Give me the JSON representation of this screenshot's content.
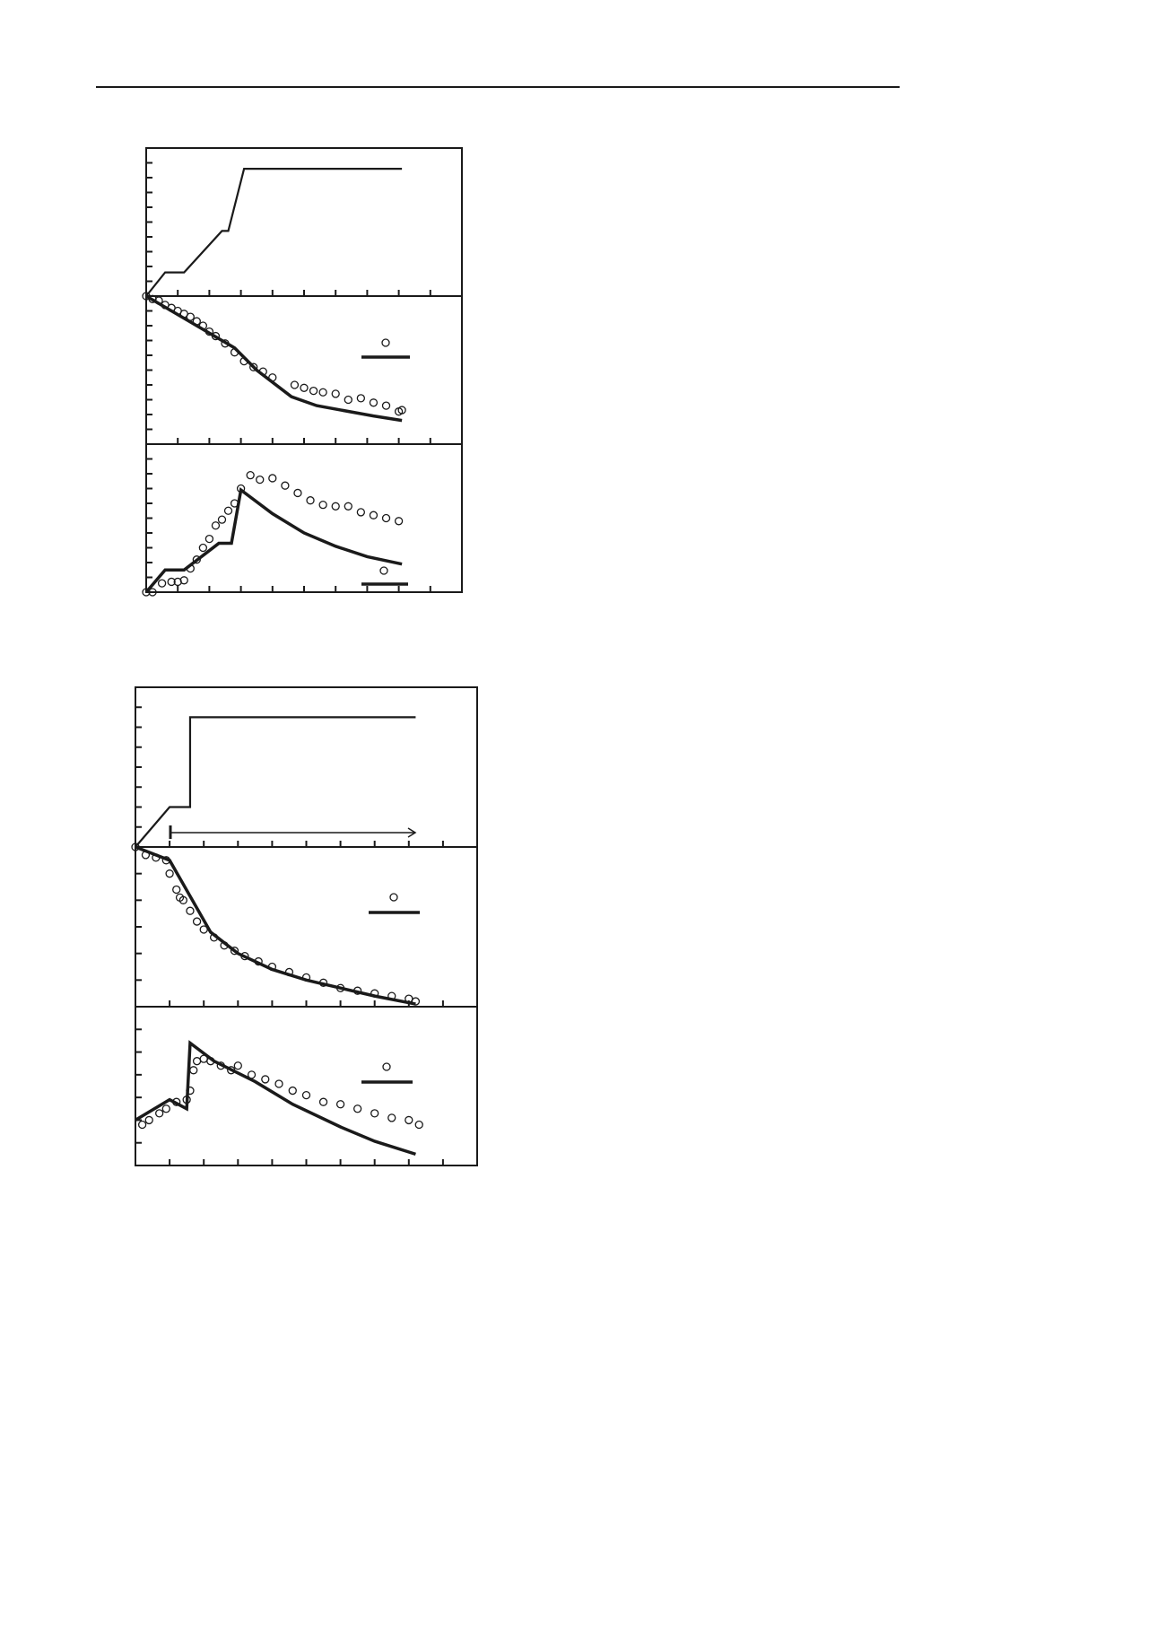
{
  "chart_data": [
    {
      "type": "line",
      "xlim": [
        0,
        10
      ],
      "xticks": [
        0,
        1,
        2,
        3,
        4,
        5,
        6,
        7,
        8,
        9,
        10
      ],
      "ylim": [
        0,
        10
      ],
      "yticks": [
        0,
        1,
        2,
        3,
        4,
        5,
        6,
        7,
        8,
        9,
        10
      ],
      "series": [
        {
          "style": "line",
          "color": "#1a1a1a",
          "x": [
            0,
            0.6,
            1.2,
            2.4,
            2.6,
            3.1,
            8.1
          ],
          "values": [
            0,
            1.6,
            1.6,
            4.4,
            4.4,
            8.6,
            8.6
          ]
        }
      ]
    },
    {
      "type": "line",
      "xlim": [
        0,
        10
      ],
      "xticks": [
        0,
        1,
        2,
        3,
        4,
        5,
        6,
        7,
        8,
        9,
        10
      ],
      "ylim": [
        -10,
        0
      ],
      "yticks": [
        -10,
        -9,
        -8,
        -7,
        -6,
        -5,
        -4,
        -3,
        -2,
        -1,
        0
      ],
      "series": [
        {
          "style": "markers",
          "color": "#1a1a1a",
          "x": [
            0,
            0.2,
            0.4,
            0.6,
            0.8,
            1.0,
            1.2,
            1.4,
            1.6,
            1.8,
            2.0,
            2.2,
            2.5,
            2.8,
            3.1,
            3.4,
            3.7,
            4.0,
            4.7,
            5.0,
            5.3,
            5.6,
            6.0,
            6.4,
            6.8,
            7.2,
            7.6,
            8.0,
            8.1
          ],
          "values": [
            0,
            -0.2,
            -0.3,
            -0.6,
            -0.8,
            -1.0,
            -1.2,
            -1.4,
            -1.7,
            -2.0,
            -2.4,
            -2.7,
            -3.2,
            -3.8,
            -4.4,
            -4.8,
            -5.1,
            -5.5,
            -6.0,
            -6.2,
            -6.4,
            -6.5,
            -6.6,
            -7.0,
            -6.9,
            -7.2,
            -7.4,
            -7.8,
            -7.7
          ]
        },
        {
          "style": "line",
          "color": "#1a1a1a",
          "x": [
            0,
            2.8,
            3.5,
            4.6,
            5.4,
            7.2,
            8.1
          ],
          "values": [
            0,
            -3.5,
            -5,
            -6.8,
            -7.4,
            -8.1,
            -8.4
          ]
        }
      ]
    },
    {
      "type": "line",
      "xlim": [
        0,
        10
      ],
      "xticks": [
        0,
        1,
        2,
        3,
        4,
        5,
        6,
        7,
        8,
        9,
        10
      ],
      "ylim": [
        0,
        10
      ],
      "yticks": [
        0,
        1,
        2,
        3,
        4,
        5,
        6,
        7,
        8,
        9,
        10
      ],
      "series": [
        {
          "style": "markers",
          "color": "#1a1a1a",
          "x": [
            0,
            0.2,
            0.5,
            0.8,
            1.0,
            1.2,
            1.4,
            1.6,
            1.8,
            2.0,
            2.2,
            2.4,
            2.6,
            2.8,
            3.0,
            3.3,
            3.6,
            4.0,
            4.4,
            4.8,
            5.2,
            5.6,
            6.0,
            6.4,
            6.8,
            7.2,
            7.6,
            8.0
          ],
          "values": [
            0,
            0,
            0.6,
            0.7,
            0.7,
            0.8,
            1.6,
            2.2,
            3.0,
            3.6,
            4.5,
            4.9,
            5.5,
            6.0,
            7.0,
            7.9,
            7.6,
            7.7,
            7.2,
            6.7,
            6.2,
            5.9,
            5.8,
            5.8,
            5.4,
            5.2,
            5.0,
            4.8
          ]
        },
        {
          "style": "line",
          "color": "#1a1a1a",
          "x": [
            0,
            0.6,
            1.2,
            2.3,
            2.7,
            3.0,
            4.0,
            5.0,
            6.0,
            7.0,
            8.1
          ],
          "values": [
            0,
            1.5,
            1.5,
            3.3,
            3.3,
            6.9,
            5.3,
            4.0,
            3.1,
            2.4,
            1.9
          ]
        }
      ]
    },
    {
      "type": "line",
      "xlim": [
        0,
        10
      ],
      "xticks": [
        0,
        1,
        2,
        3,
        4,
        5,
        6,
        7,
        8,
        9,
        10
      ],
      "ylim": [
        0,
        8
      ],
      "yticks": [
        0,
        1,
        2,
        3,
        4,
        5,
        6,
        7,
        8
      ],
      "series": [
        {
          "style": "line",
          "color": "#1a1a1a",
          "x": [
            0,
            1.0,
            1.6,
            1.6,
            8.2
          ],
          "values": [
            0,
            2.0,
            2.0,
            6.5,
            6.5
          ]
        }
      ]
    },
    {
      "type": "line",
      "xlim": [
        0,
        10
      ],
      "xticks": [
        0,
        1,
        2,
        3,
        4,
        5,
        6,
        7,
        8,
        9,
        10
      ],
      "ylim": [
        -6,
        0
      ],
      "yticks": [
        -6,
        -5,
        -4,
        -3,
        -2,
        -1,
        0
      ],
      "series": [
        {
          "style": "markers",
          "color": "#1a1a1a",
          "x": [
            0,
            0.3,
            0.6,
            0.9,
            1.0,
            1.2,
            1.3,
            1.4,
            1.6,
            1.8,
            2.0,
            2.3,
            2.6,
            2.9,
            3.2,
            3.6,
            4.0,
            4.5,
            5.0,
            5.5,
            6.0,
            6.5,
            7.0,
            7.5,
            8.0,
            8.2
          ],
          "values": [
            0,
            -0.3,
            -0.4,
            -0.5,
            -1.0,
            -1.6,
            -1.9,
            -2.0,
            -2.4,
            -2.8,
            -3.1,
            -3.4,
            -3.7,
            -3.9,
            -4.1,
            -4.3,
            -4.5,
            -4.7,
            -4.9,
            -5.1,
            -5.3,
            -5.4,
            -5.5,
            -5.6,
            -5.7,
            -5.8
          ]
        },
        {
          "style": "line",
          "color": "#1a1a1a",
          "x": [
            0,
            1.0,
            1.4,
            2.2,
            3.0,
            4.0,
            5.0,
            6.0,
            7.0,
            8.2
          ],
          "values": [
            0,
            -0.5,
            -1.4,
            -3.2,
            -4.0,
            -4.6,
            -5.0,
            -5.3,
            -5.6,
            -5.9
          ]
        }
      ]
    },
    {
      "type": "line",
      "xlim": [
        0,
        10
      ],
      "xticks": [
        0,
        1,
        2,
        3,
        4,
        5,
        6,
        7,
        8,
        9,
        10
      ],
      "ylim": [
        0,
        7
      ],
      "yticks": [
        0,
        1,
        2,
        3,
        4,
        5,
        6,
        7
      ],
      "series": [
        {
          "style": "markers",
          "color": "#1a1a1a",
          "x": [
            0.2,
            0.4,
            0.7,
            0.9,
            1.2,
            1.5,
            1.6,
            1.7,
            1.8,
            2.0,
            2.2,
            2.5,
            2.8,
            3.0,
            3.4,
            3.8,
            4.2,
            4.6,
            5.0,
            5.5,
            6.0,
            6.5,
            7.0,
            7.5,
            8.0,
            8.3
          ],
          "values": [
            1.8,
            2.0,
            2.3,
            2.5,
            2.8,
            2.9,
            3.3,
            4.2,
            4.6,
            4.7,
            4.6,
            4.4,
            4.2,
            4.4,
            4.0,
            3.8,
            3.6,
            3.3,
            3.1,
            2.8,
            2.7,
            2.5,
            2.3,
            2.1,
            2.0,
            1.8
          ]
        },
        {
          "style": "line",
          "color": "#1a1a1a",
          "x": [
            0,
            1.0,
            1.5,
            1.6,
            2.3,
            3.5,
            4.6,
            6.0,
            7.0,
            8.2
          ],
          "values": [
            2.0,
            2.9,
            2.5,
            5.4,
            4.6,
            3.7,
            2.7,
            1.7,
            1.07,
            0.5
          ]
        }
      ]
    }
  ]
}
